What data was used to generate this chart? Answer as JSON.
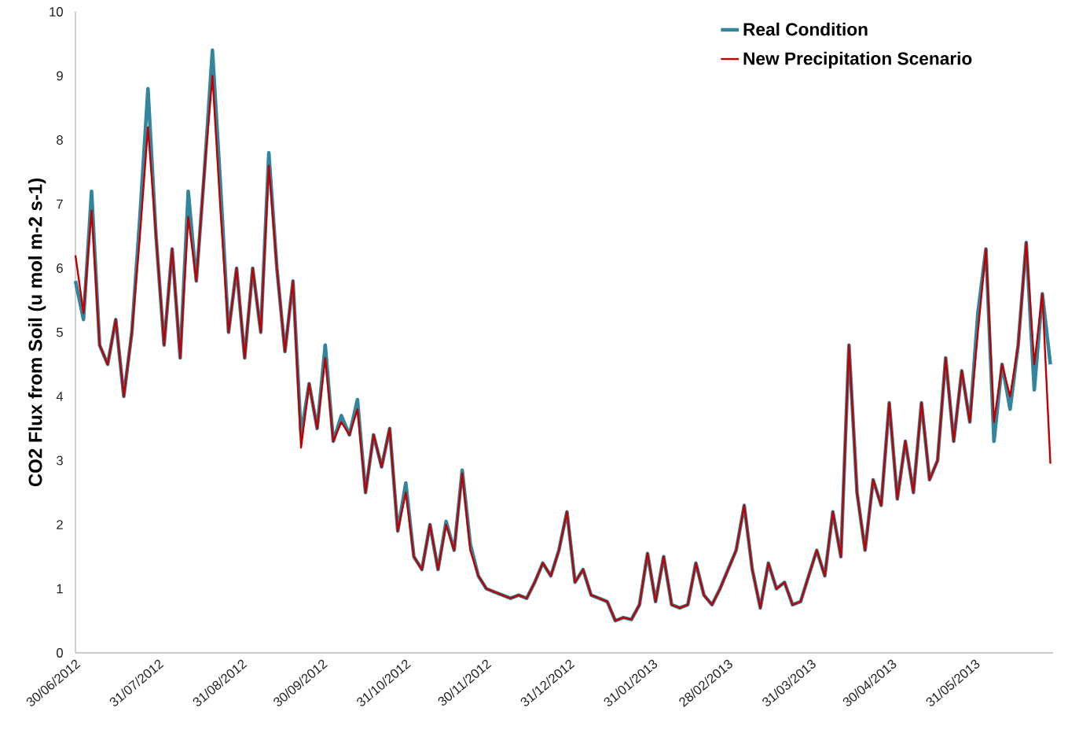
{
  "chart_data": {
    "type": "line",
    "ylabel": "CO2 Flux from Soil (u mol m-2 s-1)",
    "x": [
      "2012-06-30",
      "2012-07-03",
      "2012-07-06",
      "2012-07-09",
      "2012-07-12",
      "2012-07-15",
      "2012-07-18",
      "2012-07-21",
      "2012-07-24",
      "2012-07-27",
      "2012-07-30",
      "2012-08-02",
      "2012-08-05",
      "2012-08-08",
      "2012-08-11",
      "2012-08-14",
      "2012-08-17",
      "2012-08-20",
      "2012-08-23",
      "2012-08-26",
      "2012-08-29",
      "2012-09-01",
      "2012-09-04",
      "2012-09-07",
      "2012-09-10",
      "2012-09-13",
      "2012-09-16",
      "2012-09-19",
      "2012-09-22",
      "2012-09-25",
      "2012-09-28",
      "2012-10-01",
      "2012-10-04",
      "2012-10-07",
      "2012-10-10",
      "2012-10-13",
      "2012-10-16",
      "2012-10-19",
      "2012-10-22",
      "2012-10-25",
      "2012-10-28",
      "2012-10-31",
      "2012-11-03",
      "2012-11-06",
      "2012-11-09",
      "2012-11-12",
      "2012-11-15",
      "2012-11-18",
      "2012-11-21",
      "2012-11-24",
      "2012-11-27",
      "2012-11-30",
      "2012-12-03",
      "2012-12-06",
      "2012-12-09",
      "2012-12-12",
      "2012-12-15",
      "2012-12-18",
      "2012-12-21",
      "2012-12-24",
      "2012-12-27",
      "2012-12-30",
      "2013-01-02",
      "2013-01-05",
      "2013-01-08",
      "2013-01-11",
      "2013-01-14",
      "2013-01-17",
      "2013-01-20",
      "2013-01-23",
      "2013-01-26",
      "2013-01-29",
      "2013-02-01",
      "2013-02-04",
      "2013-02-07",
      "2013-02-10",
      "2013-02-13",
      "2013-02-16",
      "2013-02-19",
      "2013-02-22",
      "2013-02-25",
      "2013-02-28",
      "2013-03-03",
      "2013-03-06",
      "2013-03-09",
      "2013-03-12",
      "2013-03-15",
      "2013-03-18",
      "2013-03-21",
      "2013-03-24",
      "2013-03-27",
      "2013-03-30",
      "2013-04-02",
      "2013-04-05",
      "2013-04-08",
      "2013-04-11",
      "2013-04-14",
      "2013-04-17",
      "2013-04-20",
      "2013-04-23",
      "2013-04-26",
      "2013-04-29",
      "2013-05-02",
      "2013-05-05",
      "2013-05-08",
      "2013-05-11",
      "2013-05-14",
      "2013-05-17",
      "2013-05-20",
      "2013-05-23",
      "2013-05-26",
      "2013-05-29",
      "2013-06-01",
      "2013-06-04",
      "2013-06-07",
      "2013-06-10",
      "2013-06-13",
      "2013-06-16",
      "2013-06-19",
      "2013-06-22",
      "2013-06-25",
      "2013-06-28"
    ],
    "series": [
      {
        "name": "Real Condition",
        "color": "#31859c",
        "values": [
          5.8,
          5.2,
          7.2,
          4.8,
          4.5,
          5.2,
          4.0,
          5.0,
          6.8,
          8.8,
          6.5,
          4.8,
          6.3,
          4.6,
          7.2,
          5.8,
          7.5,
          9.4,
          7.3,
          5.0,
          6.0,
          4.6,
          6.0,
          5.0,
          7.8,
          6.0,
          4.7,
          5.8,
          3.4,
          4.2,
          3.5,
          4.8,
          3.3,
          3.7,
          3.4,
          3.95,
          2.5,
          3.4,
          2.9,
          3.5,
          1.9,
          2.65,
          1.5,
          1.3,
          2.0,
          1.3,
          2.05,
          1.6,
          2.85,
          1.7,
          1.2,
          1.0,
          0.95,
          0.9,
          0.85,
          0.9,
          0.85,
          1.1,
          1.4,
          1.2,
          1.6,
          2.2,
          1.1,
          1.3,
          0.9,
          0.85,
          0.8,
          0.5,
          0.55,
          0.52,
          0.75,
          1.55,
          0.8,
          1.5,
          0.75,
          0.7,
          0.75,
          1.4,
          0.9,
          0.75,
          1.0,
          1.3,
          1.6,
          2.3,
          1.3,
          0.7,
          1.4,
          1.0,
          1.1,
          0.75,
          0.8,
          1.2,
          1.6,
          1.2,
          2.2,
          1.5,
          4.8,
          2.5,
          1.6,
          2.7,
          2.3,
          3.9,
          2.4,
          3.3,
          2.5,
          3.9,
          2.7,
          3.0,
          4.6,
          3.3,
          4.4,
          3.6,
          5.3,
          6.3,
          3.3,
          4.5,
          3.8,
          4.8,
          6.4,
          4.1,
          5.6,
          4.5
        ]
      },
      {
        "name": "New Precipitation Scenario",
        "color": "#c00000",
        "values": [
          6.2,
          5.3,
          6.9,
          4.8,
          4.5,
          5.2,
          4.0,
          5.0,
          6.5,
          8.2,
          6.5,
          4.8,
          6.3,
          4.6,
          6.8,
          5.8,
          7.5,
          9.0,
          6.9,
          5.0,
          6.0,
          4.6,
          6.0,
          5.0,
          7.6,
          6.0,
          4.7,
          5.8,
          3.2,
          4.2,
          3.5,
          4.6,
          3.3,
          3.6,
          3.4,
          3.8,
          2.5,
          3.4,
          2.9,
          3.5,
          1.9,
          2.5,
          1.5,
          1.3,
          2.0,
          1.3,
          2.0,
          1.6,
          2.8,
          1.6,
          1.2,
          1.0,
          0.95,
          0.9,
          0.85,
          0.9,
          0.85,
          1.1,
          1.4,
          1.2,
          1.6,
          2.2,
          1.1,
          1.3,
          0.9,
          0.85,
          0.8,
          0.5,
          0.55,
          0.52,
          0.75,
          1.55,
          0.8,
          1.5,
          0.75,
          0.7,
          0.75,
          1.4,
          0.9,
          0.75,
          1.0,
          1.3,
          1.6,
          2.3,
          1.3,
          0.7,
          1.4,
          1.0,
          1.1,
          0.75,
          0.8,
          1.2,
          1.6,
          1.2,
          2.2,
          1.5,
          4.8,
          2.5,
          1.6,
          2.7,
          2.3,
          3.9,
          2.4,
          3.3,
          2.5,
          3.9,
          2.7,
          3.0,
          4.6,
          3.3,
          4.4,
          3.6,
          5.0,
          6.3,
          3.6,
          4.5,
          4.0,
          4.8,
          6.4,
          4.5,
          5.6,
          2.95
        ]
      }
    ],
    "xlim": [
      "2012-06-30",
      "2013-06-29"
    ],
    "xticks": [
      {
        "value": "2012-06-30",
        "label": "30/06/2012"
      },
      {
        "value": "2012-07-31",
        "label": "31/07/2012"
      },
      {
        "value": "2012-08-31",
        "label": "31/08/2012"
      },
      {
        "value": "2012-09-30",
        "label": "30/09/2012"
      },
      {
        "value": "2012-10-31",
        "label": "31/10/2012"
      },
      {
        "value": "2012-11-30",
        "label": "30/11/2012"
      },
      {
        "value": "2012-12-31",
        "label": "31/12/2012"
      },
      {
        "value": "2013-01-31",
        "label": "31/01/2013"
      },
      {
        "value": "2013-02-28",
        "label": "28/02/2013"
      },
      {
        "value": "2013-03-31",
        "label": "31/03/2013"
      },
      {
        "value": "2013-04-30",
        "label": "30/04/2013"
      },
      {
        "value": "2013-05-31",
        "label": "31/05/2013"
      }
    ],
    "ylim": [
      0,
      10
    ],
    "yticks": [
      0,
      1,
      2,
      3,
      4,
      5,
      6,
      7,
      8,
      9,
      10
    ],
    "legend": "top right",
    "grid": false,
    "line_style": "solid"
  }
}
